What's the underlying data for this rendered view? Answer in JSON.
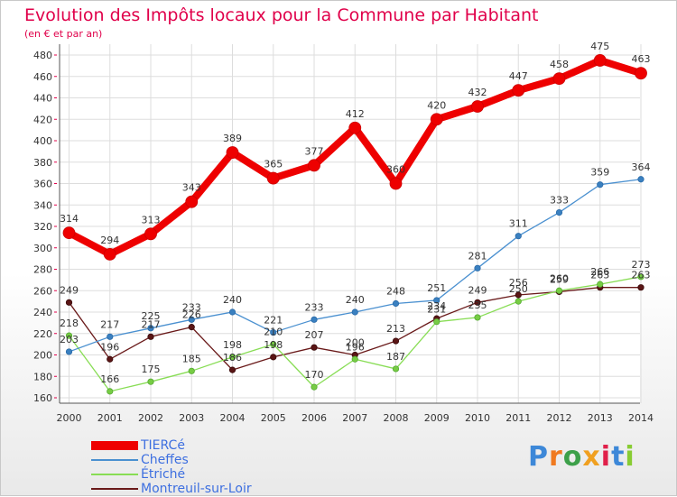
{
  "title": "Evolution des Impôts locaux pour la Commune par Habitant",
  "subtitle": "(en € et par an)",
  "brand": "Proxiti",
  "chart_data": {
    "type": "line",
    "title": "Evolution des Impôts locaux pour la Commune par Habitant",
    "subtitle": "(en € et par an)",
    "xlabel": "",
    "ylabel": "",
    "categories": [
      "2000",
      "2001",
      "2002",
      "2003",
      "2004",
      "2005",
      "2006",
      "2007",
      "2008",
      "2009",
      "2010",
      "2011",
      "2012",
      "2013",
      "2014"
    ],
    "ylim": [
      160,
      480
    ],
    "yticks": [
      160,
      180,
      200,
      220,
      240,
      260,
      280,
      300,
      320,
      340,
      360,
      380,
      400,
      420,
      440,
      460,
      480
    ],
    "grid": true,
    "legend_position": "bottom-left",
    "series": [
      {
        "name": "TIERCé",
        "color": "#ee0000",
        "values": [
          314,
          294,
          313,
          343,
          389,
          365,
          377,
          412,
          360,
          420,
          432,
          447,
          458,
          475,
          463
        ]
      },
      {
        "name": "Cheffes",
        "color": "#4a90d0",
        "values": [
          203,
          217,
          225,
          233,
          240,
          221,
          233,
          240,
          248,
          251,
          281,
          311,
          333,
          359,
          364
        ]
      },
      {
        "name": "Étriché",
        "color": "#88dd55",
        "values": [
          218,
          166,
          175,
          185,
          198,
          210,
          170,
          196,
          187,
          231,
          235,
          250,
          260,
          266,
          273
        ]
      },
      {
        "name": "Montreuil-sur-Loir",
        "color": "#6a1a1a",
        "values": [
          249,
          196,
          217,
          226,
          186,
          198,
          207,
          200,
          213,
          234,
          249,
          256,
          259,
          263,
          263
        ]
      }
    ]
  }
}
